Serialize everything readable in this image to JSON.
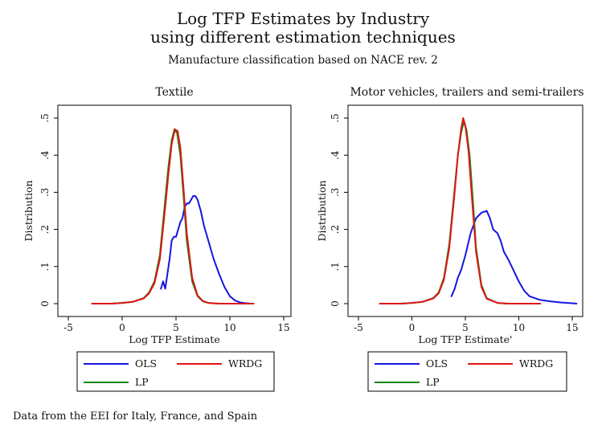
{
  "figure": {
    "title_line1": "Log TFP Estimates by Industry",
    "title_line2": "using different estimation techniques",
    "subtitle": "Manufacture classification based on NACE rev. 2",
    "note": "Data from the EEI for Italy, France, and Spain"
  },
  "colors": {
    "OLS": "#1515e0",
    "WRDG": "#e01515",
    "LP": "#118811",
    "frame": "#000000"
  },
  "chart_data": [
    {
      "type": "line",
      "title": "Textile",
      "xlabel": "Log TFP Estimate",
      "ylabel": "Distribution",
      "xlim": [
        -5,
        15
      ],
      "ylim": [
        0,
        0.5
      ],
      "xticks": [
        -5,
        0,
        5,
        10,
        15
      ],
      "yticks": [
        0,
        0.1,
        0.2,
        0.3,
        0.4,
        0.5
      ],
      "xtick_labels": [
        "-5",
        "0",
        "5",
        "10",
        "15"
      ],
      "ytick_labels": [
        "0",
        ".1",
        ".2",
        ".3",
        ".4",
        ".5"
      ],
      "grid": false,
      "legend_position": "bottom",
      "series": [
        {
          "name": "OLS",
          "x": [
            3.6,
            3.8,
            4.0,
            4.2,
            4.4,
            4.6,
            4.8,
            5.0,
            5.2,
            5.4,
            5.6,
            5.8,
            6.0,
            6.2,
            6.4,
            6.6,
            6.8,
            7.0,
            7.3,
            7.6,
            8.0,
            8.5,
            9.0,
            9.5,
            10.0,
            10.5,
            11.0,
            11.5,
            12.0
          ],
          "y": [
            0.04,
            0.06,
            0.04,
            0.08,
            0.12,
            0.17,
            0.18,
            0.18,
            0.2,
            0.22,
            0.23,
            0.26,
            0.27,
            0.27,
            0.28,
            0.29,
            0.29,
            0.28,
            0.25,
            0.21,
            0.17,
            0.12,
            0.08,
            0.045,
            0.02,
            0.008,
            0.003,
            0.001,
            0.0
          ]
        },
        {
          "name": "LP",
          "x": [
            -2.8,
            -1.0,
            0.0,
            1.0,
            2.0,
            2.5,
            3.0,
            3.5,
            4.0,
            4.3,
            4.6,
            4.85,
            5.1,
            5.4,
            5.7,
            6.0,
            6.5,
            7.0,
            7.5,
            8.0,
            9.0,
            10.0,
            11.0,
            12.2
          ],
          "y": [
            0.0,
            0.0,
            0.002,
            0.005,
            0.015,
            0.03,
            0.06,
            0.13,
            0.28,
            0.37,
            0.44,
            0.47,
            0.46,
            0.4,
            0.29,
            0.17,
            0.06,
            0.02,
            0.006,
            0.002,
            0.0,
            0.0,
            0.0,
            0.0
          ]
        },
        {
          "name": "WRDG",
          "x": [
            -2.8,
            -1.0,
            0.0,
            1.0,
            2.0,
            2.5,
            3.0,
            3.5,
            4.0,
            4.3,
            4.6,
            4.9,
            5.15,
            5.4,
            5.7,
            6.0,
            6.5,
            7.0,
            7.5,
            8.0,
            9.0,
            10.0,
            11.0,
            12.2
          ],
          "y": [
            0.0,
            0.0,
            0.002,
            0.005,
            0.014,
            0.028,
            0.055,
            0.12,
            0.26,
            0.35,
            0.43,
            0.47,
            0.465,
            0.42,
            0.31,
            0.19,
            0.07,
            0.022,
            0.007,
            0.002,
            0.0,
            0.0,
            0.0,
            0.0
          ]
        }
      ],
      "legend": [
        "OLS",
        "WRDG",
        "LP"
      ]
    },
    {
      "type": "line",
      "title": "Motor vehicles, trailers and semi-trailers",
      "xlabel": "Log TFP Estimate'",
      "ylabel": "Distribution",
      "xlim": [
        -5,
        15
      ],
      "ylim": [
        0,
        0.5
      ],
      "xticks": [
        -5,
        0,
        5,
        10,
        15
      ],
      "yticks": [
        0,
        0.1,
        0.2,
        0.3,
        0.4,
        0.5
      ],
      "xtick_labels": [
        "-5",
        "0",
        "5",
        "10",
        "15"
      ],
      "ytick_labels": [
        "0",
        ".1",
        ".2",
        ".3",
        ".4",
        ".5"
      ],
      "grid": false,
      "legend_position": "bottom",
      "series": [
        {
          "name": "OLS",
          "x": [
            3.7,
            4.0,
            4.3,
            4.6,
            5.0,
            5.5,
            6.0,
            6.5,
            7.0,
            7.3,
            7.6,
            8.0,
            8.3,
            8.6,
            9.0,
            9.5,
            10.0,
            10.5,
            11.0,
            12.0,
            13.0,
            14.0,
            15.0,
            15.4
          ],
          "y": [
            0.02,
            0.04,
            0.07,
            0.09,
            0.13,
            0.19,
            0.23,
            0.245,
            0.25,
            0.23,
            0.2,
            0.19,
            0.17,
            0.14,
            0.12,
            0.09,
            0.06,
            0.035,
            0.02,
            0.01,
            0.006,
            0.003,
            0.001,
            0.0
          ]
        },
        {
          "name": "LP",
          "x": [
            -3.0,
            -1.0,
            0.0,
            1.0,
            2.0,
            2.5,
            3.0,
            3.5,
            4.0,
            4.3,
            4.6,
            4.85,
            5.1,
            5.4,
            5.7,
            6.0,
            6.5,
            7.0,
            8.0,
            9.0,
            10.0,
            11.0,
            12.0
          ],
          "y": [
            0.0,
            0.0,
            0.002,
            0.005,
            0.015,
            0.03,
            0.07,
            0.16,
            0.31,
            0.4,
            0.46,
            0.49,
            0.47,
            0.4,
            0.28,
            0.15,
            0.05,
            0.015,
            0.002,
            0.0,
            0.0,
            0.0,
            0.0
          ]
        },
        {
          "name": "WRDG",
          "x": [
            -3.0,
            -1.0,
            0.0,
            1.0,
            2.0,
            2.5,
            3.0,
            3.5,
            4.0,
            4.3,
            4.6,
            4.8,
            5.0,
            5.3,
            5.6,
            6.0,
            6.5,
            7.0,
            8.0,
            9.0,
            10.0,
            11.0,
            12.0
          ],
          "y": [
            0.0,
            0.0,
            0.002,
            0.005,
            0.014,
            0.028,
            0.065,
            0.15,
            0.3,
            0.4,
            0.47,
            0.5,
            0.48,
            0.41,
            0.29,
            0.14,
            0.045,
            0.013,
            0.002,
            0.0,
            0.0,
            0.0,
            0.0
          ]
        }
      ],
      "legend": [
        "OLS",
        "WRDG",
        "LP"
      ]
    }
  ]
}
